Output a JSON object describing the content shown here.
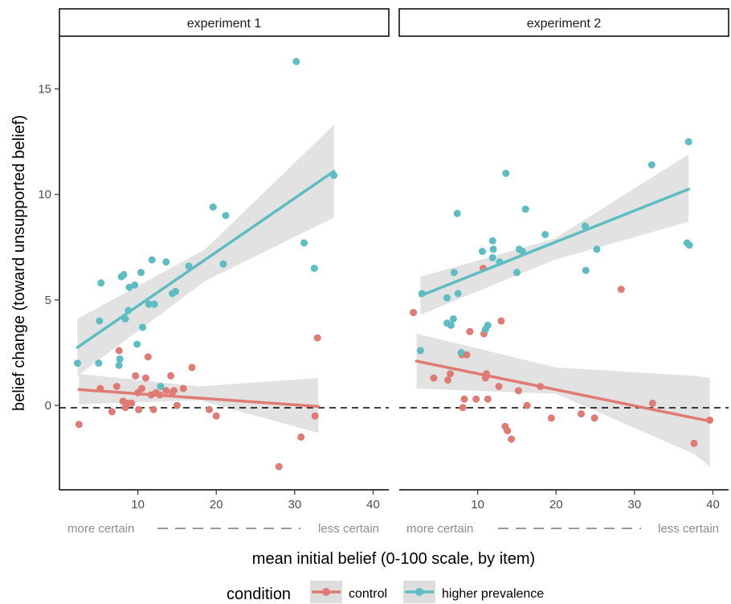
{
  "chart_data": {
    "type": "scatter",
    "facets": [
      "experiment 1",
      "experiment 2"
    ],
    "xlabel": "mean initial belief (0-100 scale, by item)",
    "ylabel": "belief change (toward unsupported belief)",
    "x_ticks": [
      10,
      20,
      30,
      40
    ],
    "y_ticks": [
      0,
      5,
      10,
      15
    ],
    "xlim": [
      0,
      42
    ],
    "ylim": [
      -4,
      17.5
    ],
    "certainty_labels": {
      "left": "more certain",
      "right": "less certain"
    },
    "reference_line": {
      "y": 0,
      "style": "dashed"
    },
    "legend": {
      "title": "condition",
      "position": "bottom",
      "entries": [
        "control",
        "higher prevalence"
      ]
    },
    "colors": {
      "control": "#E07B73",
      "higher prevalence": "#5DBDC2",
      "ribbon": "#DDDDDD"
    },
    "panels": [
      {
        "name": "experiment 1",
        "series": [
          {
            "name": "control",
            "points": [
              [
                2.5,
                -0.9
              ],
              [
                5.2,
                0.8
              ],
              [
                6.7,
                -0.3
              ],
              [
                7.3,
                0.9
              ],
              [
                7.6,
                2.6
              ],
              [
                8.1,
                0.2
              ],
              [
                8.4,
                -0.1
              ],
              [
                8.7,
                0.1
              ],
              [
                9.2,
                0.1
              ],
              [
                9.7,
                1.4
              ],
              [
                10.0,
                0.6
              ],
              [
                10.1,
                -0.2
              ],
              [
                10.5,
                0.8
              ],
              [
                11.0,
                1.3
              ],
              [
                11.3,
                2.3
              ],
              [
                11.7,
                0.5
              ],
              [
                12.0,
                -0.2
              ],
              [
                12.3,
                0.6
              ],
              [
                12.8,
                0.5
              ],
              [
                13.6,
                0.7
              ],
              [
                14.2,
                1.4
              ],
              [
                14.4,
                0.6
              ],
              [
                14.6,
                0.7
              ],
              [
                15.0,
                0.0
              ],
              [
                15.8,
                0.8
              ],
              [
                16.9,
                1.8
              ],
              [
                19.1,
                -0.2
              ],
              [
                20.0,
                -0.5
              ],
              [
                28.0,
                -2.9
              ],
              [
                30.8,
                -1.5
              ],
              [
                32.6,
                -0.5
              ],
              [
                32.9,
                3.2
              ]
            ],
            "trend": {
              "x": [
                2.5,
                33
              ],
              "y": [
                0.75,
                -0.05
              ]
            },
            "band": {
              "x": [
                2.5,
                17.8,
                33
              ],
              "lower": [
                0.05,
                0.25,
                -1.3
              ],
              "upper": [
                1.5,
                0.9,
                1.3
              ]
            }
          },
          {
            "name": "higher prevalence",
            "points": [
              [
                2.3,
                2.0
              ],
              [
                5.0,
                2.0
              ],
              [
                5.1,
                4.0
              ],
              [
                5.3,
                5.8
              ],
              [
                7.6,
                1.9
              ],
              [
                7.7,
                2.2
              ],
              [
                7.9,
                6.1
              ],
              [
                8.2,
                6.2
              ],
              [
                8.4,
                4.1
              ],
              [
                8.8,
                4.5
              ],
              [
                8.9,
                5.6
              ],
              [
                9.6,
                5.7
              ],
              [
                9.9,
                2.9
              ],
              [
                10.4,
                6.3
              ],
              [
                10.6,
                3.7
              ],
              [
                11.4,
                4.8
              ],
              [
                11.8,
                6.9
              ],
              [
                12.1,
                4.8
              ],
              [
                12.9,
                0.9
              ],
              [
                13.6,
                6.8
              ],
              [
                14.4,
                5.3
              ],
              [
                14.8,
                5.4
              ],
              [
                16.5,
                6.6
              ],
              [
                19.6,
                9.4
              ],
              [
                20.9,
                6.7
              ],
              [
                21.2,
                9.0
              ],
              [
                30.2,
                16.3
              ],
              [
                31.2,
                7.7
              ],
              [
                32.5,
                6.5
              ],
              [
                35.0,
                10.9
              ]
            ],
            "trend": {
              "x": [
                2.3,
                35
              ],
              "y": [
                2.75,
                11.1
              ]
            },
            "band": {
              "x": [
                2.3,
                18.6,
                35
              ],
              "lower": [
                1.4,
                5.9,
                8.9
              ],
              "upper": [
                4.1,
                7.4,
                13.3
              ]
            }
          }
        ]
      },
      {
        "name": "experiment 2",
        "series": [
          {
            "name": "control",
            "points": [
              [
                1.8,
                4.4
              ],
              [
                4.4,
                1.3
              ],
              [
                6.2,
                1.2
              ],
              [
                6.5,
                1.5
              ],
              [
                8.0,
                2.4
              ],
              [
                8.1,
                -0.1
              ],
              [
                8.3,
                0.3
              ],
              [
                8.6,
                2.4
              ],
              [
                9.0,
                3.5
              ],
              [
                9.8,
                0.3
              ],
              [
                10.7,
                6.5
              ],
              [
                10.8,
                3.4
              ],
              [
                11.0,
                1.3
              ],
              [
                11.1,
                1.5
              ],
              [
                11.3,
                0.3
              ],
              [
                12.7,
                0.9
              ],
              [
                13.0,
                4.0
              ],
              [
                13.5,
                -1.0
              ],
              [
                13.8,
                -1.2
              ],
              [
                14.3,
                -1.6
              ],
              [
                15.2,
                0.7
              ],
              [
                16.3,
                0.0
              ],
              [
                18.0,
                0.9
              ],
              [
                19.4,
                -0.6
              ],
              [
                23.2,
                -0.4
              ],
              [
                24.9,
                -0.6
              ],
              [
                28.3,
                5.5
              ],
              [
                32.3,
                0.1
              ],
              [
                37.6,
                -1.8
              ],
              [
                39.6,
                -0.7
              ]
            ],
            "trend": {
              "x": [
                2.2,
                39.6
              ],
              "y": [
                2.1,
                -0.75
              ]
            },
            "band": {
              "x": [
                2.2,
                20,
                37.6,
                39.6
              ],
              "lower": [
                0.8,
                0.55,
                -2.3,
                -2.9
              ],
              "upper": [
                3.4,
                1.8,
                1.4,
                1.3
              ]
            }
          },
          {
            "name": "higher prevalence",
            "points": [
              [
                2.7,
                2.6
              ],
              [
                2.9,
                5.3
              ],
              [
                6.1,
                5.1
              ],
              [
                6.1,
                3.9
              ],
              [
                6.6,
                3.8
              ],
              [
                6.9,
                4.1
              ],
              [
                7.0,
                6.3
              ],
              [
                7.4,
                9.1
              ],
              [
                7.5,
                5.3
              ],
              [
                7.9,
                2.5
              ],
              [
                10.6,
                7.3
              ],
              [
                11.0,
                3.6
              ],
              [
                11.3,
                3.8
              ],
              [
                11.9,
                7.0
              ],
              [
                11.9,
                7.8
              ],
              [
                12.0,
                7.4
              ],
              [
                12.8,
                6.8
              ],
              [
                13.6,
                11.0
              ],
              [
                15.0,
                6.3
              ],
              [
                15.3,
                7.4
              ],
              [
                15.7,
                7.3
              ],
              [
                16.1,
                9.3
              ],
              [
                18.6,
                8.1
              ],
              [
                23.7,
                8.5
              ],
              [
                23.8,
                6.4
              ],
              [
                25.2,
                7.4
              ],
              [
                32.2,
                11.4
              ],
              [
                36.7,
                7.7
              ],
              [
                36.9,
                12.5
              ],
              [
                37.0,
                7.6
              ]
            ],
            "trend": {
              "x": [
                2.7,
                36.9
              ],
              "y": [
                5.2,
                10.25
              ]
            },
            "band": {
              "x": [
                2.7,
                19.8,
                36.9
              ],
              "lower": [
                4.3,
                6.9,
                8.7
              ],
              "upper": [
                6.1,
                7.9,
                11.9
              ]
            }
          }
        ]
      }
    ]
  }
}
